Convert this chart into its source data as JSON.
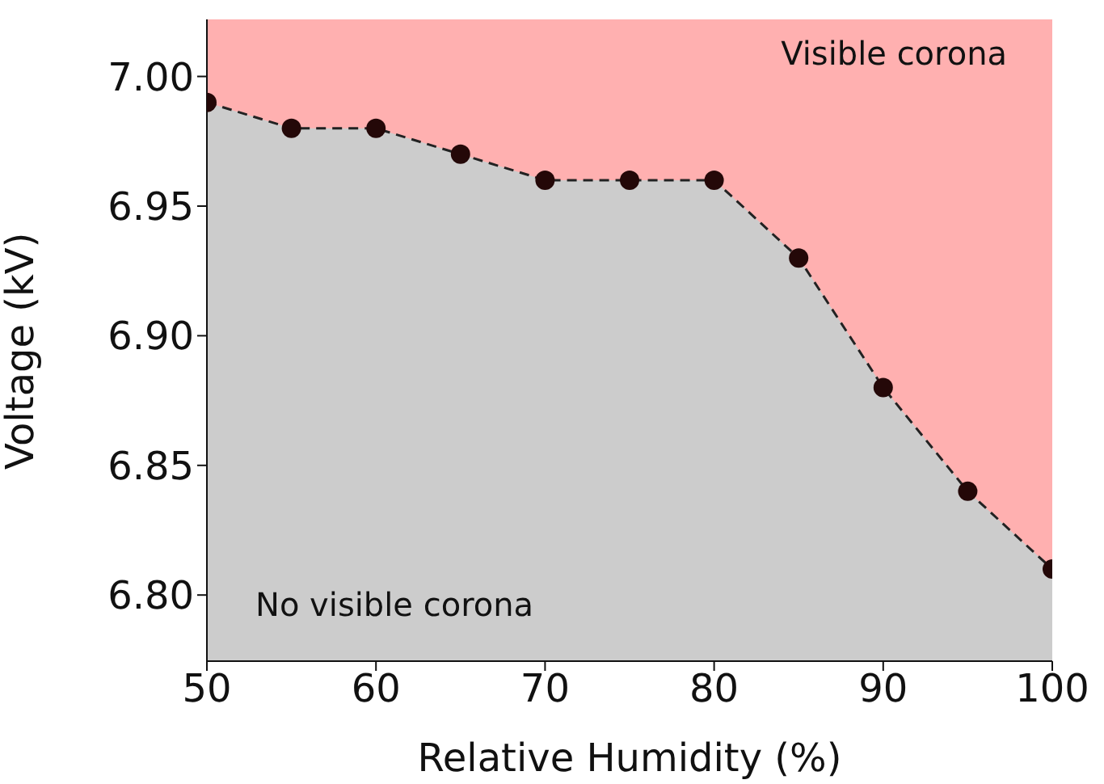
{
  "chart_data": {
    "type": "area",
    "xlabel": "Relative Humidity (%)",
    "ylabel": "Voltage (kV)",
    "x": [
      50,
      55,
      60,
      65,
      70,
      75,
      80,
      85,
      90,
      95,
      100
    ],
    "series": [
      {
        "color": "#cccccc",
        "values": [
          6.99,
          6.98,
          6.98,
          6.97,
          6.96,
          6.96,
          6.96,
          6.93,
          6.88,
          6.84,
          6.81
        ]
      }
    ],
    "xlim": [
      50,
      100
    ],
    "xticks": [
      50,
      60,
      70,
      80,
      90,
      100
    ],
    "ylim": [
      6.7745,
      7.022
    ],
    "yticks": [
      {
        "value": 6.8,
        "label": "6.80"
      },
      6.85,
      {
        "value": 6.9,
        "label": "6.90"
      },
      6.95,
      {
        "value": 7,
        "label": "7.00"
      }
    ],
    "bands": [
      {
        "axis": "x",
        "from": 50,
        "to": 100,
        "color": "#ffb0b0",
        "label": "Visible corona"
      }
    ],
    "annotations": [
      "No visible corona"
    ],
    "marker": "circle",
    "line_style": "dashed",
    "grid": false,
    "legend": false
  }
}
